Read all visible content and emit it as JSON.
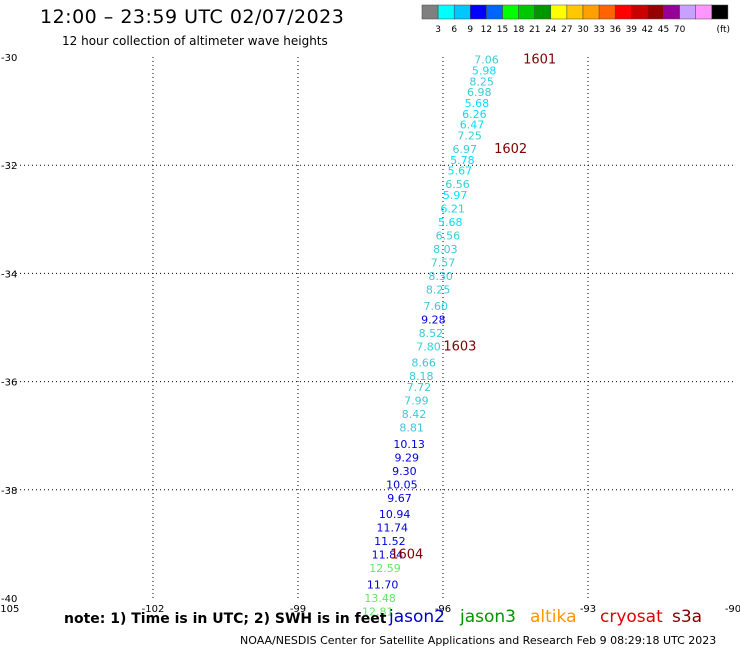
{
  "header": {
    "title": "12:00 – 23:59 UTC 02/07/2023",
    "subtitle": "12 hour collection of altimeter wave heights"
  },
  "legend": {
    "colors": [
      "#808080",
      "#00ffff",
      "#00c8ff",
      "#0000ff",
      "#0064ff",
      "#00ff00",
      "#00c800",
      "#009600",
      "#ffff00",
      "#ffc800",
      "#ffa000",
      "#ff6400",
      "#ff0000",
      "#c80000",
      "#960000",
      "#960096",
      "#c8a0ff",
      "#ff96ff",
      "#000000"
    ],
    "labels": [
      "3",
      "6",
      "9",
      "12",
      "15",
      "18",
      "21",
      "24",
      "27",
      "30",
      "33",
      "36",
      "39",
      "42",
      "45",
      "70"
    ],
    "unit": "(ft)"
  },
  "footer": {
    "note": "note: 1) Time is in UTC; 2) SWH is in feet",
    "credit": "NOAA/NESDIS Center for Satellite Applications and Research    Feb  9 08:29:18 UTC 2023",
    "satellites": [
      {
        "name": "jason2",
        "color": "#0000cc"
      },
      {
        "name": "jason3",
        "color": "#009600"
      },
      {
        "name": "altika",
        "color": "#ff9600"
      },
      {
        "name": "cryosat",
        "color": "#e00000"
      },
      {
        "name": "s3a",
        "color": "#800000"
      }
    ]
  },
  "chart_data": {
    "type": "scatter",
    "xlim": [
      -105,
      -90
    ],
    "ylim": [
      -40,
      -30
    ],
    "x_ticks": [
      "-105",
      "-102",
      "-99",
      "-96",
      "-93",
      "-90"
    ],
    "y_ticks": [
      "-30",
      "-32",
      "-34",
      "-36",
      "-38",
      "-40"
    ],
    "grid": true,
    "points": [
      {
        "x": -95.1,
        "y": -30.05,
        "label": "7.06",
        "color": "#3ccdd2"
      },
      {
        "x": -95.15,
        "y": -30.25,
        "label": "5.98",
        "color": "#00e0ff"
      },
      {
        "x": -95.2,
        "y": -30.45,
        "label": "8.25",
        "color": "#3cc8dc"
      },
      {
        "x": -95.25,
        "y": -30.65,
        "label": "6.98",
        "color": "#3ccdd2"
      },
      {
        "x": -95.3,
        "y": -30.85,
        "label": "5.68",
        "color": "#00e0ff"
      },
      {
        "x": -95.35,
        "y": -31.05,
        "label": "6.26",
        "color": "#00e0ff"
      },
      {
        "x": -95.4,
        "y": -31.25,
        "label": "6.47",
        "color": "#00e0ff"
      },
      {
        "x": -95.45,
        "y": -31.45,
        "label": "7.25",
        "color": "#3ccdd2"
      },
      {
        "x": -95.55,
        "y": -31.7,
        "label": "6.97",
        "color": "#3ccdd2"
      },
      {
        "x": -95.6,
        "y": -31.9,
        "label": "5.78",
        "color": "#00e0ff"
      },
      {
        "x": -95.65,
        "y": -32.1,
        "label": "5.67",
        "color": "#00e0ff"
      },
      {
        "x": -95.7,
        "y": -32.35,
        "label": "6.56",
        "color": "#3ccdd2"
      },
      {
        "x": -95.75,
        "y": -32.55,
        "label": "5.97",
        "color": "#00e0ff"
      },
      {
        "x": -95.8,
        "y": -32.8,
        "label": "6.21",
        "color": "#00e0ff"
      },
      {
        "x": -95.85,
        "y": -33.05,
        "label": "5.68",
        "color": "#00e0ff"
      },
      {
        "x": -95.9,
        "y": -33.3,
        "label": "6.56",
        "color": "#3ccdd2"
      },
      {
        "x": -95.95,
        "y": -33.55,
        "label": "8.03",
        "color": "#3cc8dc"
      },
      {
        "x": -96.0,
        "y": -33.8,
        "label": "7.57",
        "color": "#3ccdd2"
      },
      {
        "x": -96.05,
        "y": -34.05,
        "label": "8.30",
        "color": "#3cc8dc"
      },
      {
        "x": -96.1,
        "y": -34.3,
        "label": "8.25",
        "color": "#3cc8dc"
      },
      {
        "x": -96.15,
        "y": -34.6,
        "label": "7.60",
        "color": "#3ccdd2"
      },
      {
        "x": -96.2,
        "y": -34.85,
        "label": "9.28",
        "color": "#0000dc"
      },
      {
        "x": -96.25,
        "y": -35.1,
        "label": "8.52",
        "color": "#3cc8dc"
      },
      {
        "x": -96.3,
        "y": -35.35,
        "label": "7.80",
        "color": "#3ccdd2"
      },
      {
        "x": -96.4,
        "y": -35.65,
        "label": "8.66",
        "color": "#3cc8dc"
      },
      {
        "x": -96.45,
        "y": -35.9,
        "label": "8.18",
        "color": "#3cc8dc"
      },
      {
        "x": -96.5,
        "y": -36.1,
        "label": "7.72",
        "color": "#3ccdd2"
      },
      {
        "x": -96.55,
        "y": -36.35,
        "label": "7.99",
        "color": "#3ccdd2"
      },
      {
        "x": -96.6,
        "y": -36.6,
        "label": "8.42",
        "color": "#3cc8dc"
      },
      {
        "x": -96.65,
        "y": -36.85,
        "label": "8.81",
        "color": "#3cc8dc"
      },
      {
        "x": -96.7,
        "y": -37.15,
        "label": "10.13",
        "color": "#0000dc"
      },
      {
        "x": -96.75,
        "y": -37.4,
        "label": "9.29",
        "color": "#0000dc"
      },
      {
        "x": -96.8,
        "y": -37.65,
        "label": "9.30",
        "color": "#0000dc"
      },
      {
        "x": -96.85,
        "y": -37.9,
        "label": "10.05",
        "color": "#0000dc"
      },
      {
        "x": -96.9,
        "y": -38.15,
        "label": "9.67",
        "color": "#0000dc"
      },
      {
        "x": -97.0,
        "y": -38.45,
        "label": "10.94",
        "color": "#0000dc"
      },
      {
        "x": -97.05,
        "y": -38.7,
        "label": "11.74",
        "color": "#0000dc"
      },
      {
        "x": -97.1,
        "y": -38.95,
        "label": "11.52",
        "color": "#0000dc"
      },
      {
        "x": -97.15,
        "y": -39.2,
        "label": "11.84",
        "color": "#0000dc"
      },
      {
        "x": -97.2,
        "y": -39.45,
        "label": "12.59",
        "color": "#64e664"
      },
      {
        "x": -97.25,
        "y": -39.75,
        "label": "11.70",
        "color": "#0000dc"
      },
      {
        "x": -97.3,
        "y": -40.0,
        "label": "13.48",
        "color": "#64e664"
      },
      {
        "x": -97.35,
        "y": -40.25,
        "label": "12.81",
        "color": "#64e664"
      }
    ],
    "annotations": [
      {
        "x": -94.0,
        "y": -30.05,
        "label": "1601",
        "color": "#800000"
      },
      {
        "x": -94.6,
        "y": -31.7,
        "label": "1602",
        "color": "#800000"
      },
      {
        "x": -95.65,
        "y": -35.35,
        "label": "1603",
        "color": "#800000"
      },
      {
        "x": -96.75,
        "y": -39.2,
        "label": "1604",
        "color": "#800000"
      }
    ]
  }
}
